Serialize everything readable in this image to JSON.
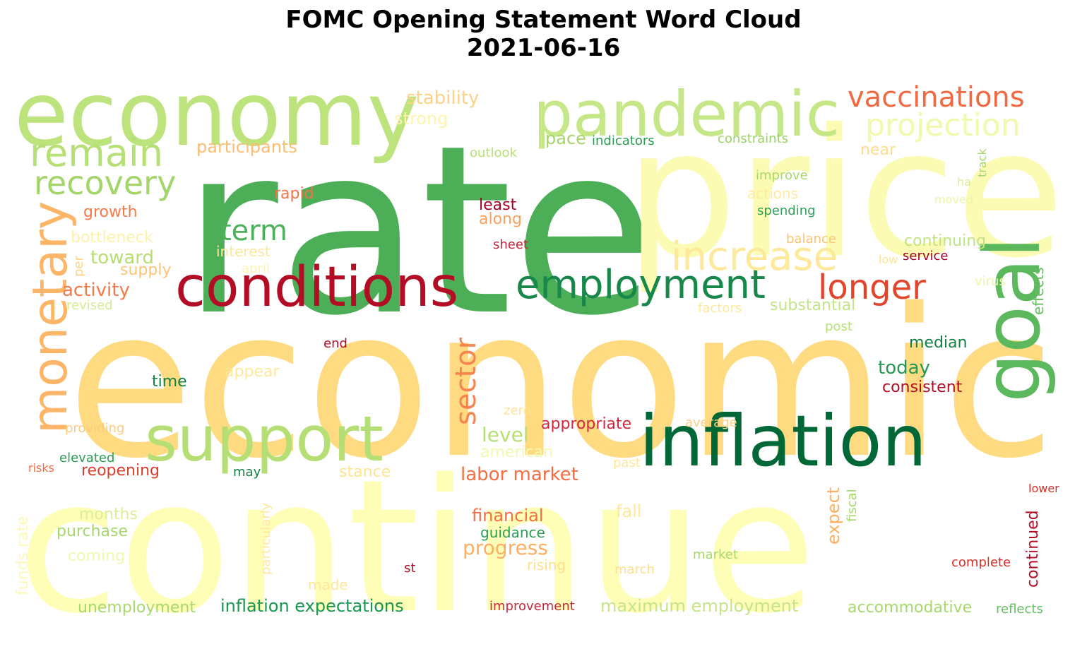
{
  "title": "FOMC Opening Statement Word Cloud",
  "date": "2021-06-16",
  "words": [
    {
      "text": "rate",
      "color": "#4caf57"
    },
    {
      "text": "economic",
      "color": "#fedb80"
    },
    {
      "text": "continue",
      "color": "#fefeb6"
    },
    {
      "text": "price",
      "color": "#fbfbb4"
    },
    {
      "text": "economy",
      "color": "#bde37d"
    },
    {
      "text": "pandemic",
      "color": "#c6e788"
    },
    {
      "text": "inflation",
      "color": "#006837"
    },
    {
      "text": "conditions",
      "color": "#b30d26"
    },
    {
      "text": "support",
      "color": "#b5df74"
    },
    {
      "text": "employment",
      "color": "#17874a"
    },
    {
      "text": "goal",
      "color": "#5cb85c"
    },
    {
      "text": "monetary",
      "color": "#fdb567"
    },
    {
      "text": "remain",
      "color": "#b6df75"
    },
    {
      "text": "recovery",
      "color": "#a3d56a"
    },
    {
      "text": "increase",
      "color": "#fee89a"
    },
    {
      "text": "longer",
      "color": "#e3442d"
    },
    {
      "text": "vaccinations",
      "color": "#f26841"
    },
    {
      "text": "projection",
      "color": "#f1f9ac"
    },
    {
      "text": "term",
      "color": "#4db15c"
    },
    {
      "text": "sector",
      "color": "#f7844e"
    },
    {
      "text": "stability",
      "color": "#fed184"
    },
    {
      "text": "strong",
      "color": "#fdf4ac"
    },
    {
      "text": "participants",
      "color": "#fdbd70"
    },
    {
      "text": "pace",
      "color": "#a4d56b"
    },
    {
      "text": "indicators",
      "color": "#2a9c53"
    },
    {
      "text": "constraints",
      "color": "#9bd168"
    },
    {
      "text": "outlook",
      "color": "#b7e075"
    },
    {
      "text": "near",
      "color": "#fedc8c"
    },
    {
      "text": "improve",
      "color": "#a8d86d"
    },
    {
      "text": "actions",
      "color": "#feeba0"
    },
    {
      "text": "spending",
      "color": "#32a057"
    },
    {
      "text": "ha",
      "color": "#d6ee93"
    },
    {
      "text": "moved",
      "color": "#eaf6a7"
    },
    {
      "text": "track",
      "color": "#a6d76c"
    },
    {
      "text": "rapid",
      "color": "#f47047"
    },
    {
      "text": "growth",
      "color": "#f47a49"
    },
    {
      "text": "least",
      "color": "#a50026"
    },
    {
      "text": "along",
      "color": "#fca05f"
    },
    {
      "text": "bottleneck",
      "color": "#fef2aa"
    },
    {
      "text": "toward",
      "color": "#b5df74"
    },
    {
      "text": "interest",
      "color": "#fee79a"
    },
    {
      "text": "supply",
      "color": "#fdc474"
    },
    {
      "text": "april",
      "color": "#fff3b3"
    },
    {
      "text": "per",
      "color": "#fdd485"
    },
    {
      "text": "activity",
      "color": "#f47a49"
    },
    {
      "text": "revised",
      "color": "#d3ec92"
    },
    {
      "text": "sheet",
      "color": "#c5243a"
    },
    {
      "text": "balance",
      "color": "#fdc374"
    },
    {
      "text": "continuing",
      "color": "#c0e383"
    },
    {
      "text": "low",
      "color": "#fee49a"
    },
    {
      "text": "service",
      "color": "#a50026"
    },
    {
      "text": "virus",
      "color": "#ecf7a9"
    },
    {
      "text": "effects",
      "color": "#66bd63"
    },
    {
      "text": "substantial",
      "color": "#c2e587"
    },
    {
      "text": "factors",
      "color": "#fee89c"
    },
    {
      "text": "post",
      "color": "#b8e079"
    },
    {
      "text": "end",
      "color": "#b30d26"
    },
    {
      "text": "median",
      "color": "#138044"
    },
    {
      "text": "today",
      "color": "#269753"
    },
    {
      "text": "consistent",
      "color": "#b30d26"
    },
    {
      "text": "appear",
      "color": "#fee89c"
    },
    {
      "text": "time",
      "color": "#138044"
    },
    {
      "text": "zero",
      "color": "#fee49a"
    },
    {
      "text": "average",
      "color": "#fed085"
    },
    {
      "text": "level",
      "color": "#b6df75"
    },
    {
      "text": "appropriate",
      "color": "#d1283d"
    },
    {
      "text": "american",
      "color": "#f2f9b0"
    },
    {
      "text": "providing",
      "color": "#fdcb80"
    },
    {
      "text": "elevated",
      "color": "#2a9c53"
    },
    {
      "text": "risks",
      "color": "#f26c48"
    },
    {
      "text": "reopening",
      "color": "#dd3d2d"
    },
    {
      "text": "may",
      "color": "#138044"
    },
    {
      "text": "stance",
      "color": "#fee48e"
    },
    {
      "text": "labor market",
      "color": "#f46d43"
    },
    {
      "text": "past",
      "color": "#fee79a"
    },
    {
      "text": "lower",
      "color": "#d73027"
    },
    {
      "text": "funds rate",
      "color": "#fef8b8"
    },
    {
      "text": "months",
      "color": "#dbef98"
    },
    {
      "text": "purchase",
      "color": "#a6d76c"
    },
    {
      "text": "coming",
      "color": "#f1f9b0"
    },
    {
      "text": "particularly",
      "color": "#fee8a0"
    },
    {
      "text": "made",
      "color": "#fee79a"
    },
    {
      "text": "financial",
      "color": "#f46d43"
    },
    {
      "text": "guidance",
      "color": "#2a9c53"
    },
    {
      "text": "progress",
      "color": "#fdae61"
    },
    {
      "text": "rising",
      "color": "#fee08b"
    },
    {
      "text": "fall",
      "color": "#fee79a"
    },
    {
      "text": "expect",
      "color": "#fdae61"
    },
    {
      "text": "fiscal",
      "color": "#a6d96a"
    },
    {
      "text": "march",
      "color": "#fee08b"
    },
    {
      "text": "market",
      "color": "#a6d96a"
    },
    {
      "text": "st",
      "color": "#b30d26"
    },
    {
      "text": "complete",
      "color": "#d73027"
    },
    {
      "text": "continued",
      "color": "#b30d26"
    },
    {
      "text": "unemployment",
      "color": "#a6d96a"
    },
    {
      "text": "inflation expectations",
      "color": "#1a9850"
    },
    {
      "text": "improvement",
      "color": "#c52a3b"
    },
    {
      "text": "maximum employment",
      "color": "#c6e588"
    },
    {
      "text": "accommodative",
      "color": "#a6d96a"
    },
    {
      "text": "reflects",
      "color": "#66bd63"
    }
  ]
}
